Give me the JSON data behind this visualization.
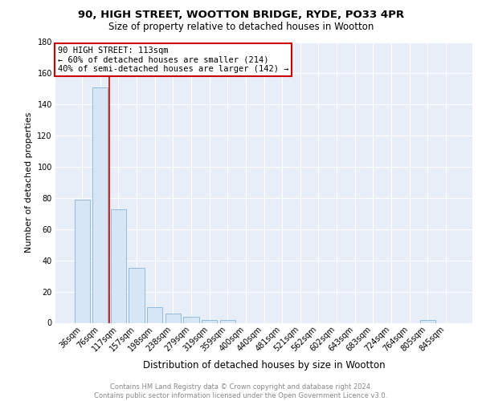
{
  "title1": "90, HIGH STREET, WOOTTON BRIDGE, RYDE, PO33 4PR",
  "title2": "Size of property relative to detached houses in Wootton",
  "xlabel": "Distribution of detached houses by size in Wootton",
  "ylabel": "Number of detached properties",
  "categories": [
    "36sqm",
    "76sqm",
    "117sqm",
    "157sqm",
    "198sqm",
    "238sqm",
    "279sqm",
    "319sqm",
    "359sqm",
    "400sqm",
    "440sqm",
    "481sqm",
    "521sqm",
    "562sqm",
    "602sqm",
    "643sqm",
    "683sqm",
    "724sqm",
    "764sqm",
    "805sqm",
    "845sqm"
  ],
  "values": [
    79,
    151,
    73,
    35,
    10,
    6,
    4,
    2,
    2,
    0,
    0,
    0,
    0,
    0,
    0,
    0,
    0,
    0,
    0,
    2,
    0
  ],
  "bar_color": "#d6e6f5",
  "bar_edgecolor": "#8ab4d4",
  "property_line_x": 1.5,
  "annotation_line1": "90 HIGH STREET: 113sqm",
  "annotation_line2": "← 60% of detached houses are smaller (214)",
  "annotation_line3": "40% of semi-detached houses are larger (142) →",
  "annotation_box_color": "#cc0000",
  "ylim": [
    0,
    180
  ],
  "yticks": [
    0,
    20,
    40,
    60,
    80,
    100,
    120,
    140,
    160,
    180
  ],
  "background_color": "#e8eef8",
  "grid_color": "#ffffff",
  "footer_text": "Contains HM Land Registry data © Crown copyright and database right 2024.\nContains public sector information licensed under the Open Government Licence v3.0.",
  "title1_fontsize": 9.5,
  "title2_fontsize": 8.5,
  "xlabel_fontsize": 8.5,
  "ylabel_fontsize": 8,
  "tick_fontsize": 7,
  "annotation_fontsize": 7.5,
  "footer_fontsize": 6
}
